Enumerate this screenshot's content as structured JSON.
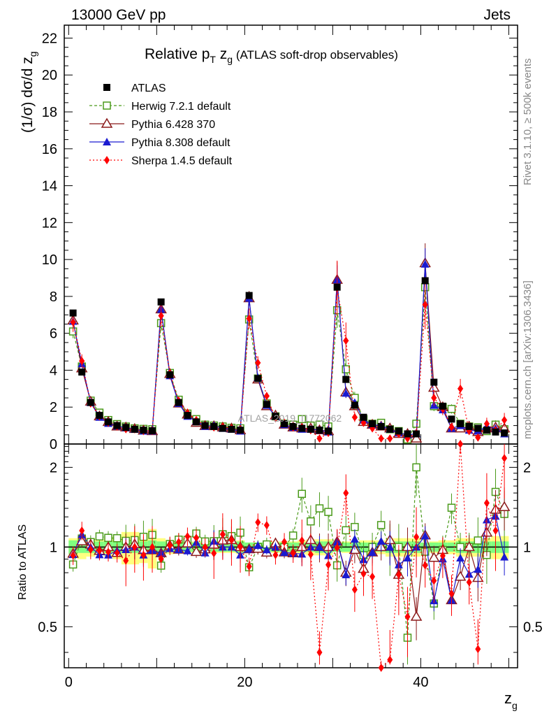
{
  "header": {
    "left": "13000 GeV pp",
    "right": "Jets"
  },
  "title": {
    "main": "Relative p",
    "sub_t": "T",
    "z": " z",
    "sub_g": "g",
    "extra": " (ATLAS soft-drop observables)"
  },
  "ylabel": {
    "text": "(1/σ) dσ/d z",
    "sub": "g"
  },
  "xlabel": {
    "text": "z",
    "sub": "g"
  },
  "ratio_ylabel": "Ratio to ATLAS",
  "watermark": "ATLAS_2019_I1772062",
  "side_text_top": "Rivet 3.1.10, ≥ 500k events",
  "side_text_bottom": "mcplots.cern.ch [arXiv:1306.3436]",
  "legend": [
    {
      "key": "atlas",
      "label": "ATLAS"
    },
    {
      "key": "herwig",
      "label": "Herwig 7.2.1 default"
    },
    {
      "key": "py6",
      "label": "Pythia 6.428 370"
    },
    {
      "key": "py8",
      "label": "Pythia 8.308 default"
    },
    {
      "key": "sherpa",
      "label": "Sherpa 1.4.5 default"
    }
  ],
  "colors": {
    "atlas": "#000000",
    "herwig": "#4a9a1a",
    "py6": "#8b1a1a",
    "py8": "#1a1ad0",
    "sherpa": "#ff0000",
    "band_inner": "#80ff80",
    "band_outer": "#ffff80"
  },
  "chart_data": {
    "type": "scatter",
    "title": "Relative pT zg (ATLAS soft-drop observables)",
    "xlabel": "zg",
    "ylabel": "(1/σ) dσ/d zg",
    "main_ylim": [
      0,
      22.7
    ],
    "ratio_ylim": [
      0.35,
      2.45
    ],
    "xlim": [
      -0.5,
      51
    ],
    "x_ticks": [
      0,
      20,
      40
    ],
    "main_y_ticks": [
      0,
      2,
      4,
      6,
      8,
      10,
      12,
      14,
      16,
      18,
      20,
      22
    ],
    "ratio_y_ticks": [
      0.5,
      1,
      2
    ],
    "x": [
      0.5,
      1.5,
      2.5,
      3.5,
      4.5,
      5.5,
      6.5,
      7.5,
      8.5,
      9.5,
      10.5,
      11.5,
      12.5,
      13.5,
      14.5,
      15.5,
      16.5,
      17.5,
      18.5,
      19.5,
      20.5,
      21.5,
      22.5,
      23.5,
      24.5,
      25.5,
      26.5,
      27.5,
      28.5,
      29.5,
      30.5,
      31.5,
      32.5,
      33.5,
      34.5,
      35.5,
      36.5,
      37.5,
      38.5,
      39.5,
      40.5,
      41.5,
      42.5,
      43.5,
      44.5,
      45.5,
      46.5,
      47.5,
      48.5,
      49.5
    ],
    "series": [
      {
        "name": "ATLAS",
        "values": [
          7.1,
          3.9,
          2.25,
          1.55,
          1.2,
          1.0,
          0.9,
          0.8,
          0.75,
          0.72,
          7.7,
          3.75,
          2.25,
          1.55,
          1.2,
          1.0,
          0.95,
          0.85,
          0.8,
          0.75,
          8.05,
          3.55,
          2.15,
          1.5,
          1.1,
          0.95,
          0.85,
          0.8,
          0.75,
          0.7,
          8.5,
          3.5,
          2.1,
          1.45,
          1.1,
          0.95,
          0.8,
          0.7,
          0.55,
          0.55,
          8.85,
          3.35,
          2.05,
          1.35,
          1.1,
          0.95,
          0.85,
          0.75,
          0.65,
          0.6
        ]
      },
      {
        "name": "Herwig 7.2.1 default",
        "values": [
          6.1,
          4.2,
          2.35,
          1.7,
          1.3,
          1.08,
          0.95,
          0.85,
          0.82,
          0.8,
          6.55,
          3.85,
          2.4,
          1.65,
          1.35,
          1.05,
          1.0,
          0.95,
          0.88,
          0.85,
          6.75,
          3.55,
          2.2,
          1.5,
          1.1,
          1.05,
          1.35,
          1.0,
          1.05,
          0.95,
          7.25,
          4.05,
          2.5,
          1.35,
          1.1,
          1.15,
          0.8,
          0.7,
          0.25,
          1.1,
          8.5,
          2.05,
          2.0,
          1.9,
          1.1,
          0.95,
          0.9,
          0.7,
          1.05,
          0.8
        ]
      },
      {
        "name": "Pythia 6.428 370",
        "values": [
          6.7,
          4.1,
          2.3,
          1.5,
          1.2,
          0.95,
          0.9,
          0.82,
          0.73,
          0.7,
          7.3,
          3.8,
          2.2,
          1.6,
          1.15,
          0.98,
          0.97,
          0.9,
          0.85,
          0.75,
          7.9,
          3.5,
          2.05,
          1.55,
          1.05,
          0.9,
          0.85,
          0.85,
          0.75,
          0.7,
          8.9,
          2.8,
          2.05,
          1.2,
          1.05,
          0.95,
          0.85,
          0.55,
          0.55,
          0.3,
          9.8,
          3.05,
          2.0,
          0.85,
          0.85,
          0.95,
          0.65,
          0.85,
          0.9,
          0.85
        ]
      },
      {
        "name": "Pythia 8.308 default",
        "values": [
          6.65,
          4.35,
          2.25,
          1.45,
          1.12,
          0.97,
          0.88,
          0.8,
          0.7,
          0.7,
          7.3,
          3.7,
          2.2,
          1.5,
          1.25,
          0.95,
          1.0,
          0.85,
          0.8,
          0.7,
          7.9,
          3.6,
          2.1,
          1.5,
          1.05,
          0.9,
          0.8,
          0.8,
          0.75,
          0.65,
          8.9,
          2.75,
          2.25,
          1.3,
          1.05,
          1.0,
          0.8,
          0.6,
          0.5,
          0.55,
          9.75,
          2.1,
          1.85,
          0.85,
          1.0,
          0.75,
          0.7,
          0.95,
          0.85,
          0.55
        ]
      },
      {
        "name": "Sherpa 1.4.5 default",
        "values": [
          6.6,
          4.5,
          2.2,
          1.5,
          1.15,
          0.95,
          0.8,
          0.8,
          0.7,
          0.72,
          6.95,
          3.8,
          2.35,
          1.7,
          1.3,
          1.0,
          0.9,
          0.95,
          0.85,
          0.75,
          6.8,
          4.4,
          2.6,
          1.4,
          1.15,
          0.9,
          0.9,
          0.75,
          0.3,
          0.6,
          8.45,
          5.6,
          1.45,
          1.15,
          0.85,
          0.3,
          0.3,
          0.55,
          0.3,
          0.6,
          7.55,
          2.5,
          1.9,
          0.9,
          3.0,
          0.7,
          0.35,
          1.1,
          0.75,
          1.3
        ]
      }
    ],
    "band_inner": [
      0.06,
      0.05,
      0.05,
      0.05,
      0.05,
      0.05,
      0.05,
      0.05,
      0.05,
      0.06,
      0.05,
      0.04,
      0.04,
      0.04,
      0.04,
      0.04,
      0.04,
      0.04,
      0.04,
      0.05,
      0.04,
      0.04,
      0.04,
      0.04,
      0.04,
      0.04,
      0.04,
      0.04,
      0.05,
      0.05,
      0.04,
      0.04,
      0.04,
      0.04,
      0.04,
      0.04,
      0.05,
      0.05,
      0.05,
      0.05,
      0.04,
      0.04,
      0.04,
      0.04,
      0.05,
      0.05,
      0.05,
      0.05,
      0.05,
      0.05
    ],
    "band_outer": [
      0.08,
      0.1,
      0.08,
      0.06,
      0.08,
      0.1,
      0.14,
      0.14,
      0.13,
      0.17,
      0.08,
      0.06,
      0.05,
      0.05,
      0.05,
      0.05,
      0.05,
      0.05,
      0.05,
      0.06,
      0.04,
      0.04,
      0.04,
      0.05,
      0.05,
      0.05,
      0.06,
      0.07,
      0.07,
      0.07,
      0.04,
      0.05,
      0.05,
      0.06,
      0.06,
      0.06,
      0.08,
      0.08,
      0.08,
      0.08,
      0.04,
      0.05,
      0.06,
      0.06,
      0.08,
      0.08,
      0.08,
      0.08,
      0.1,
      0.1
    ]
  }
}
